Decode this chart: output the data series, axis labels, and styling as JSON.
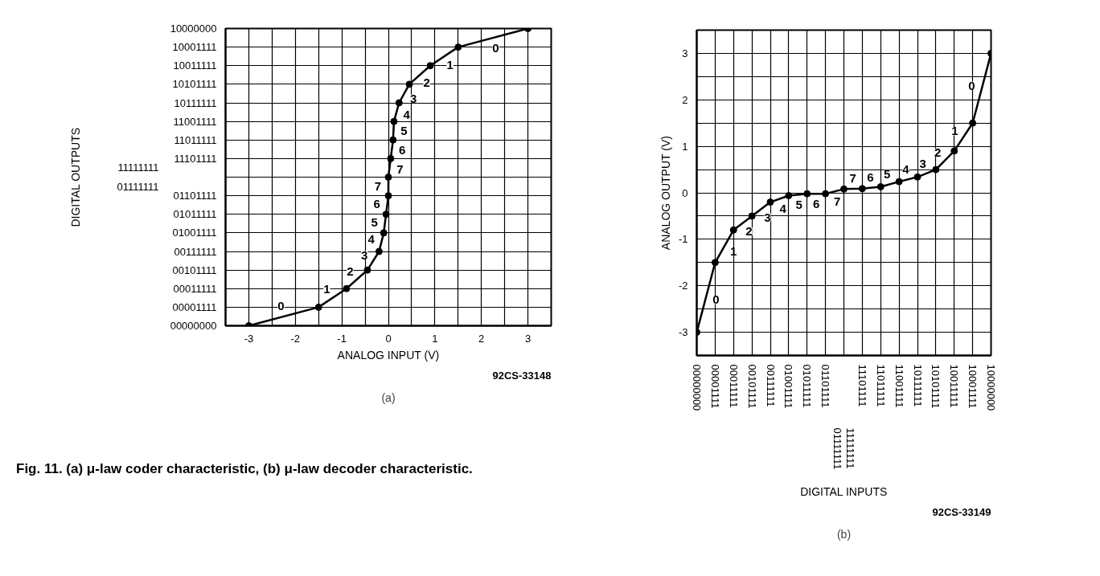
{
  "chart_data": [
    {
      "type": "line",
      "orientation": "horizontal",
      "title": "(a)",
      "xlabel": "ANALOG INPUT (V)",
      "ylabel": "DIGITAL OUTPUTS",
      "categories": [
        "10000000",
        "10001111",
        "10011111",
        "10101111",
        "10111111",
        "11001111",
        "11011111",
        "11101111",
        null,
        "01101111",
        "01011111",
        "01001111",
        "00111111",
        "00101111",
        "00011111",
        "00001111",
        "00000000"
      ],
      "values": [
        3,
        1.5,
        0.9,
        0.45,
        0.23,
        0.12,
        0.1,
        0.05,
        0,
        0,
        -0.05,
        -0.1,
        -0.2,
        -0.45,
        -0.9,
        -1.5,
        -3
      ],
      "color": "#000000",
      "marker": "circle",
      "line_style": "solid",
      "grid": true,
      "xlim": [
        -3.5,
        3.5
      ],
      "xticks": [
        -3,
        {
          "value": -2.5,
          "label": null
        },
        -2,
        {
          "value": -1.5,
          "label": null
        },
        -1,
        {
          "value": -0.5,
          "label": null
        },
        0,
        {
          "value": 0.5,
          "label": null
        },
        1,
        {
          "value": 1.5,
          "label": null
        },
        2,
        {
          "value": 2.5,
          "label": null
        },
        3
      ],
      "annotations": [
        "0",
        "1",
        "2",
        "3",
        "4",
        "5",
        "6",
        "7",
        "7",
        "6",
        "5",
        "4",
        "3",
        "2",
        "1",
        "0",
        "11111111",
        "01111111",
        "92CS-33148",
        "Fig. 11. (a) μ-law coder characteristic, (b) μ-law decoder characteristic."
      ]
    },
    {
      "type": "line",
      "title": "(b)",
      "xlabel": "DIGITAL INPUTS",
      "ylabel": "ANALOG OUTPUT (V)",
      "categories": [
        "00000000",
        "00001111",
        "00011111",
        "00101111",
        "00111111",
        "01001111",
        "01011111",
        "01101111",
        null,
        "11101111",
        "11011111",
        "11001111",
        "10111111",
        "10101111",
        "10011111",
        "10001111",
        "10000000"
      ],
      "values": [
        -3,
        -1.5,
        -0.8,
        -0.5,
        -0.2,
        -0.06,
        -0.02,
        -0.02,
        0.08,
        0.09,
        0.13,
        0.24,
        0.34,
        0.5,
        0.9,
        1.5,
        3
      ],
      "color": "#000000",
      "marker": "circle",
      "line_style": "solid",
      "grid": true,
      "ylim": [
        -3.5,
        3.5
      ],
      "yticks": [
        -3,
        {
          "value": -2.5,
          "label": null
        },
        -2,
        {
          "value": -1.5,
          "label": null
        },
        -1,
        {
          "value": -0.5,
          "label": null
        },
        0,
        {
          "value": 0.5,
          "label": null
        },
        1,
        {
          "value": 1.5,
          "label": null
        },
        2,
        {
          "value": 2.5,
          "label": null
        },
        3
      ],
      "annotations": [
        "0",
        "1",
        "2",
        "3",
        "4",
        "5",
        "6",
        "7",
        "7",
        "6",
        "5",
        "4",
        "3",
        "2",
        "1",
        "0",
        "01111111",
        "11111111",
        "92CS-33149"
      ]
    }
  ]
}
